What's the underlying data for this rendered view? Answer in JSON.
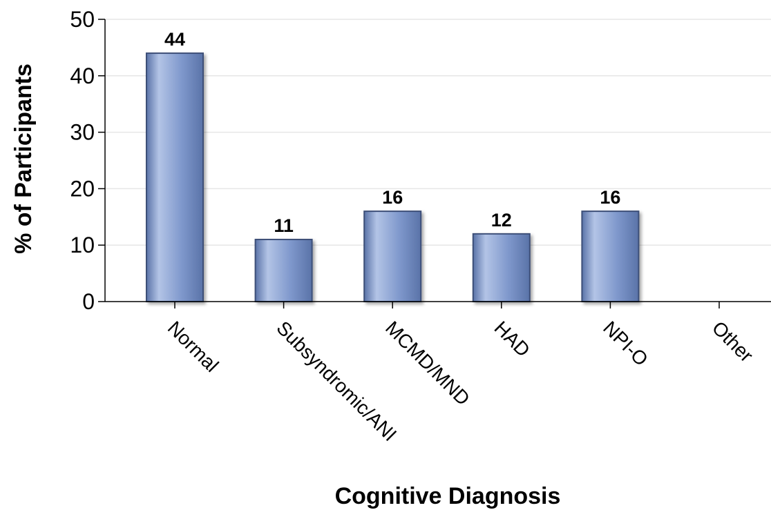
{
  "chart_data": {
    "type": "bar",
    "title": "",
    "xlabel": "Cognitive Diagnosis",
    "ylabel": "% of Participants",
    "categories": [
      "Normal",
      "Subsyndromic/ANI",
      "MCMD/MND",
      "HAD",
      "NPI-O",
      "Other"
    ],
    "values": [
      44,
      11,
      16,
      12,
      16,
      0
    ],
    "data_labels": [
      "44",
      "11",
      "16",
      "12",
      "16",
      ""
    ],
    "ylim": [
      0,
      50
    ],
    "yticks": [
      0,
      10,
      20,
      30,
      40,
      50
    ],
    "grid": true,
    "legend": "none",
    "colors": {
      "bar_fill": "#7f98cc",
      "bar_highlight": "#b3c4e6",
      "bar_shade": "#5a73a8",
      "bar_edge": "#3d4f78",
      "grid": "#e6e6e6",
      "axis": "#000000"
    }
  }
}
